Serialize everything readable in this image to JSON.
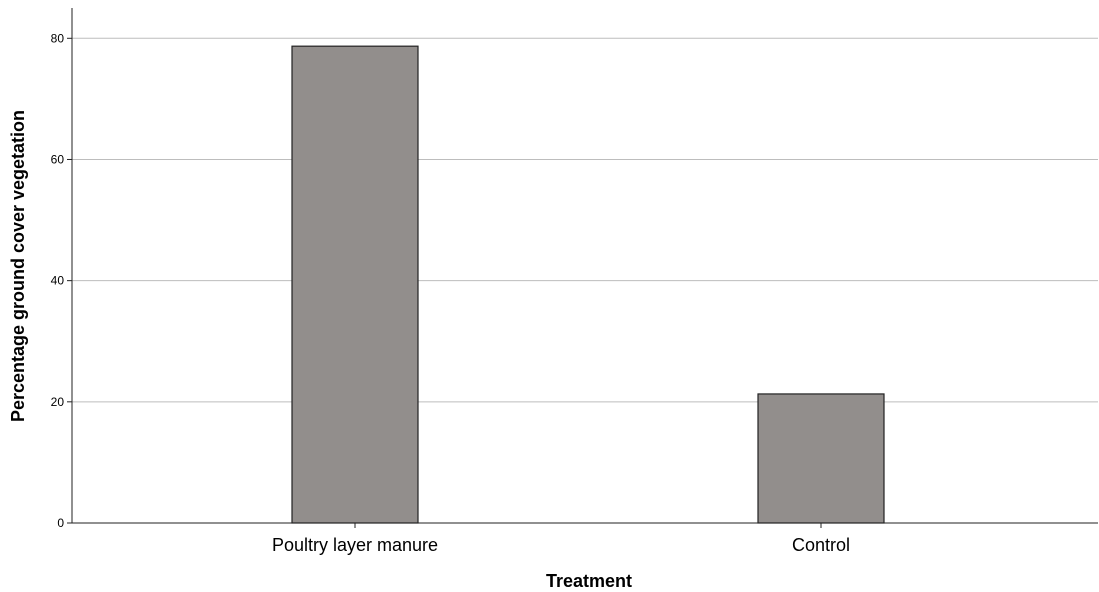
{
  "chart_data": {
    "type": "bar",
    "categories": [
      "Poultry layer manure",
      "Control"
    ],
    "values": [
      78.7,
      21.3
    ],
    "xlabel": "Treatment",
    "ylabel": "Percentage ground cover vegetation",
    "ylim": [
      0,
      85
    ],
    "yticks": [
      0,
      20,
      40,
      60,
      80
    ],
    "grid": true,
    "colors": {
      "bar_fill": "#928e8c",
      "bar_stroke": "#222222",
      "grid": "#bdbdbd",
      "axis": "#222222"
    }
  }
}
